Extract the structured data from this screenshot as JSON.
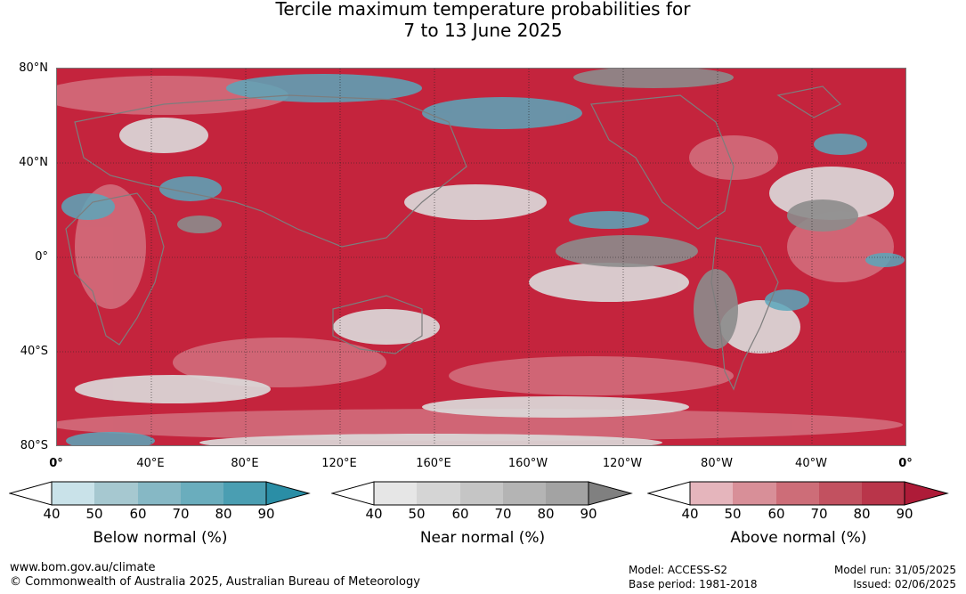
{
  "title": {
    "line1": "Tercile maximum temperature probabilities for",
    "line2": "7 to 13 June 2025"
  },
  "map": {
    "lat_labels": [
      "80°N",
      "40°N",
      "0°",
      "40°S",
      "80°S"
    ],
    "lon_labels": [
      "0°",
      "40°E",
      "80°E",
      "120°E",
      "160°E",
      "160°W",
      "120°W",
      "80°W",
      "40°W",
      "0°"
    ],
    "colors": {
      "above_dominant": "#c4243d",
      "near_normal": "#8c8c8c",
      "below_normal": "#4a9bb0",
      "coastline": "#808080"
    }
  },
  "legends": [
    {
      "title": "Below normal (%)",
      "ticks": [
        "40",
        "50",
        "60",
        "70",
        "80",
        "90"
      ],
      "colors": [
        "#ffffff",
        "#c9e2e9",
        "#a6c8d0",
        "#86b8c5",
        "#6aadbd",
        "#4a9eb2",
        "#2a8ea6"
      ]
    },
    {
      "title": "Near normal (%)",
      "ticks": [
        "40",
        "50",
        "60",
        "70",
        "80",
        "90"
      ],
      "colors": [
        "#ffffff",
        "#e6e6e6",
        "#d5d5d5",
        "#c5c5c5",
        "#b4b4b4",
        "#a3a3a3",
        "#808080"
      ]
    },
    {
      "title": "Above normal (%)",
      "ticks": [
        "40",
        "50",
        "60",
        "70",
        "80",
        "90"
      ],
      "colors": [
        "#ffffff",
        "#e5b5bc",
        "#d88f98",
        "#cd6d78",
        "#c25160",
        "#b9354a",
        "#ae1b38"
      ]
    }
  ],
  "footer": {
    "website": "www.bom.gov.au/climate",
    "copyright": "© Commonwealth of Australia 2025, Australian Bureau of Meteorology",
    "model": "Model: ACCESS-S2",
    "base_period": "Base period: 1981-2018",
    "model_run": "Model run: 31/05/2025",
    "issued": "Issued: 02/06/2025"
  }
}
